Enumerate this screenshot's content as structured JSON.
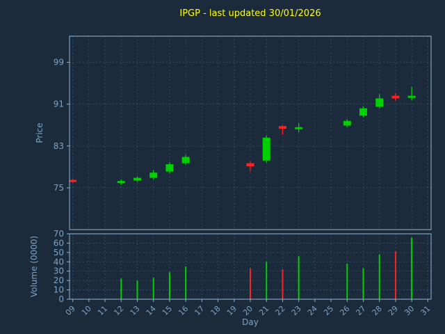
{
  "title": "IPGP - last updated 30/01/2026",
  "axes": {
    "price_label": "Price",
    "volume_label": "Volume (0000)",
    "x_label": "Day"
  },
  "colors": {
    "background": "#1b2b3c",
    "title": "#ffff00",
    "axis_label": "#7ea3c4",
    "tick_label": "#7ea3c4",
    "spine": "#8fb4d2",
    "grid": "#3d5a78",
    "up": "#00d000",
    "down": "#ff2222"
  },
  "chart_data": {
    "type": "candlestick+volume",
    "title": "IPGP - last updated 30/01/2026",
    "xlabel": "Day",
    "ylabel_price": "Price",
    "ylabel_volume": "Volume (0000)",
    "grid": "dashed",
    "x_ticks": [
      "09",
      "10",
      "11",
      "12",
      "13",
      "14",
      "15",
      "16",
      "17",
      "18",
      "19",
      "20",
      "21",
      "22",
      "23",
      "24",
      "25",
      "26",
      "27",
      "28",
      "29",
      "30",
      "31"
    ],
    "x_range": [
      8.8,
      31.2
    ],
    "price_ticks": [
      75,
      83,
      91,
      99
    ],
    "price_ylim": [
      67,
      104
    ],
    "volume_ticks": [
      0,
      10,
      20,
      30,
      40,
      50,
      60,
      70
    ],
    "volume_ylim": [
      0,
      70
    ],
    "candles": [
      {
        "day": 9,
        "open": 76.5,
        "high": 76.7,
        "low": 76.0,
        "close": 76.1,
        "volume": 0
      },
      {
        "day": 12,
        "open": 75.9,
        "high": 76.6,
        "low": 75.6,
        "close": 76.3,
        "volume": 22
      },
      {
        "day": 13,
        "open": 76.4,
        "high": 77.2,
        "low": 76.1,
        "close": 76.9,
        "volume": 20
      },
      {
        "day": 14,
        "open": 76.9,
        "high": 78.4,
        "low": 76.6,
        "close": 77.9,
        "volume": 23
      },
      {
        "day": 15,
        "open": 78.1,
        "high": 79.9,
        "low": 77.8,
        "close": 79.5,
        "volume": 29
      },
      {
        "day": 16,
        "open": 79.7,
        "high": 81.3,
        "low": 79.4,
        "close": 80.9,
        "volume": 35
      },
      {
        "day": 20,
        "open": 79.7,
        "high": 80.0,
        "low": 78.1,
        "close": 79.1,
        "volume": 33
      },
      {
        "day": 21,
        "open": 80.2,
        "high": 85.0,
        "low": 79.8,
        "close": 84.6,
        "volume": 40
      },
      {
        "day": 22,
        "open": 86.8,
        "high": 87.0,
        "low": 85.2,
        "close": 86.3,
        "volume": 32
      },
      {
        "day": 23,
        "open": 86.2,
        "high": 87.4,
        "low": 85.6,
        "close": 86.6,
        "volume": 46
      },
      {
        "day": 26,
        "open": 86.9,
        "high": 88.1,
        "low": 86.6,
        "close": 87.8,
        "volume": 38
      },
      {
        "day": 27,
        "open": 88.8,
        "high": 90.6,
        "low": 88.5,
        "close": 90.2,
        "volume": 33
      },
      {
        "day": 28,
        "open": 90.5,
        "high": 92.9,
        "low": 90.2,
        "close": 92.1,
        "volume": 48
      },
      {
        "day": 29,
        "open": 92.6,
        "high": 93.1,
        "low": 91.6,
        "close": 92.1,
        "volume": 51
      },
      {
        "day": 30,
        "open": 92.2,
        "high": 94.3,
        "low": 91.7,
        "close": 92.6,
        "volume": 66
      }
    ]
  }
}
